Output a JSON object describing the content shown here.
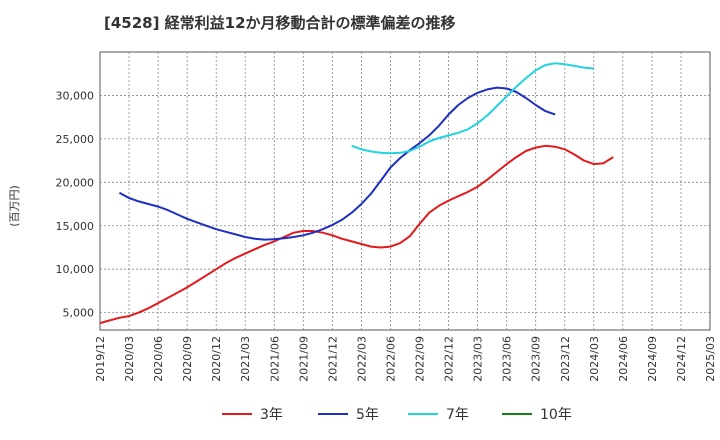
{
  "chart_data": {
    "type": "line",
    "title": "[4528]  経常利益12か月移動合計の標準偏差の推移",
    "ylabel": "(百万円)",
    "xlabel": "",
    "ylim": [
      3000,
      35000
    ],
    "yticks": [
      5000,
      10000,
      15000,
      20000,
      25000,
      30000
    ],
    "ytick_labels": [
      "5,000",
      "10,000",
      "15,000",
      "20,000",
      "25,000",
      "30,000"
    ],
    "x_ticks": [
      "2019/12",
      "2020/03",
      "2020/06",
      "2020/09",
      "2020/12",
      "2021/03",
      "2021/06",
      "2021/09",
      "2021/12",
      "2022/03",
      "2022/06",
      "2022/09",
      "2022/12",
      "2023/03",
      "2023/06",
      "2023/09",
      "2023/12",
      "2024/03",
      "2024/06",
      "2024/09",
      "2024/12",
      "2025/03"
    ],
    "grid": true,
    "legend_position": "bottom",
    "series": [
      {
        "name": "3年",
        "color": "#e31a1c",
        "start": "2019/12",
        "values": [
          3800,
          4100,
          4400,
          4600,
          5000,
          5500,
          6100,
          6700,
          7300,
          7900,
          8600,
          9300,
          10000,
          10700,
          11300,
          11800,
          12300,
          12800,
          13200,
          13700,
          14200,
          14400,
          14400,
          14200,
          13900,
          13500,
          13200,
          12900,
          12600,
          12500,
          12600,
          13000,
          13800,
          15200,
          16500,
          17300,
          17900,
          18400,
          18900,
          19500,
          20300,
          21200,
          22100,
          22900,
          23600,
          24000,
          24200,
          24100,
          23800,
          23200,
          22500,
          22100,
          22200,
          22900
        ]
      },
      {
        "name": "5年",
        "color": "#1f2fbf",
        "start": "2020/02",
        "values": [
          18800,
          18200,
          17800,
          17500,
          17200,
          16800,
          16300,
          15800,
          15400,
          15000,
          14600,
          14300,
          14000,
          13700,
          13500,
          13400,
          13450,
          13550,
          13700,
          13900,
          14200,
          14600,
          15100,
          15700,
          16500,
          17500,
          18700,
          20200,
          21700,
          22800,
          23700,
          24500,
          25400,
          26500,
          27800,
          28900,
          29700,
          30300,
          30700,
          30900,
          30800,
          30400,
          29700,
          28900,
          28200,
          27800
        ]
      },
      {
        "name": "7年",
        "color": "#22d3e0",
        "start": "2022/02",
        "values": [
          24200,
          23800,
          23550,
          23400,
          23350,
          23400,
          23600,
          24100,
          24700,
          25100,
          25400,
          25700,
          26100,
          26800,
          27700,
          28800,
          29900,
          31000,
          32000,
          32900,
          33500,
          33700,
          33600,
          33400,
          33200,
          33100
        ]
      },
      {
        "name": "10年",
        "color": "#1a7f1a",
        "start": "2024/12",
        "values": []
      }
    ]
  }
}
